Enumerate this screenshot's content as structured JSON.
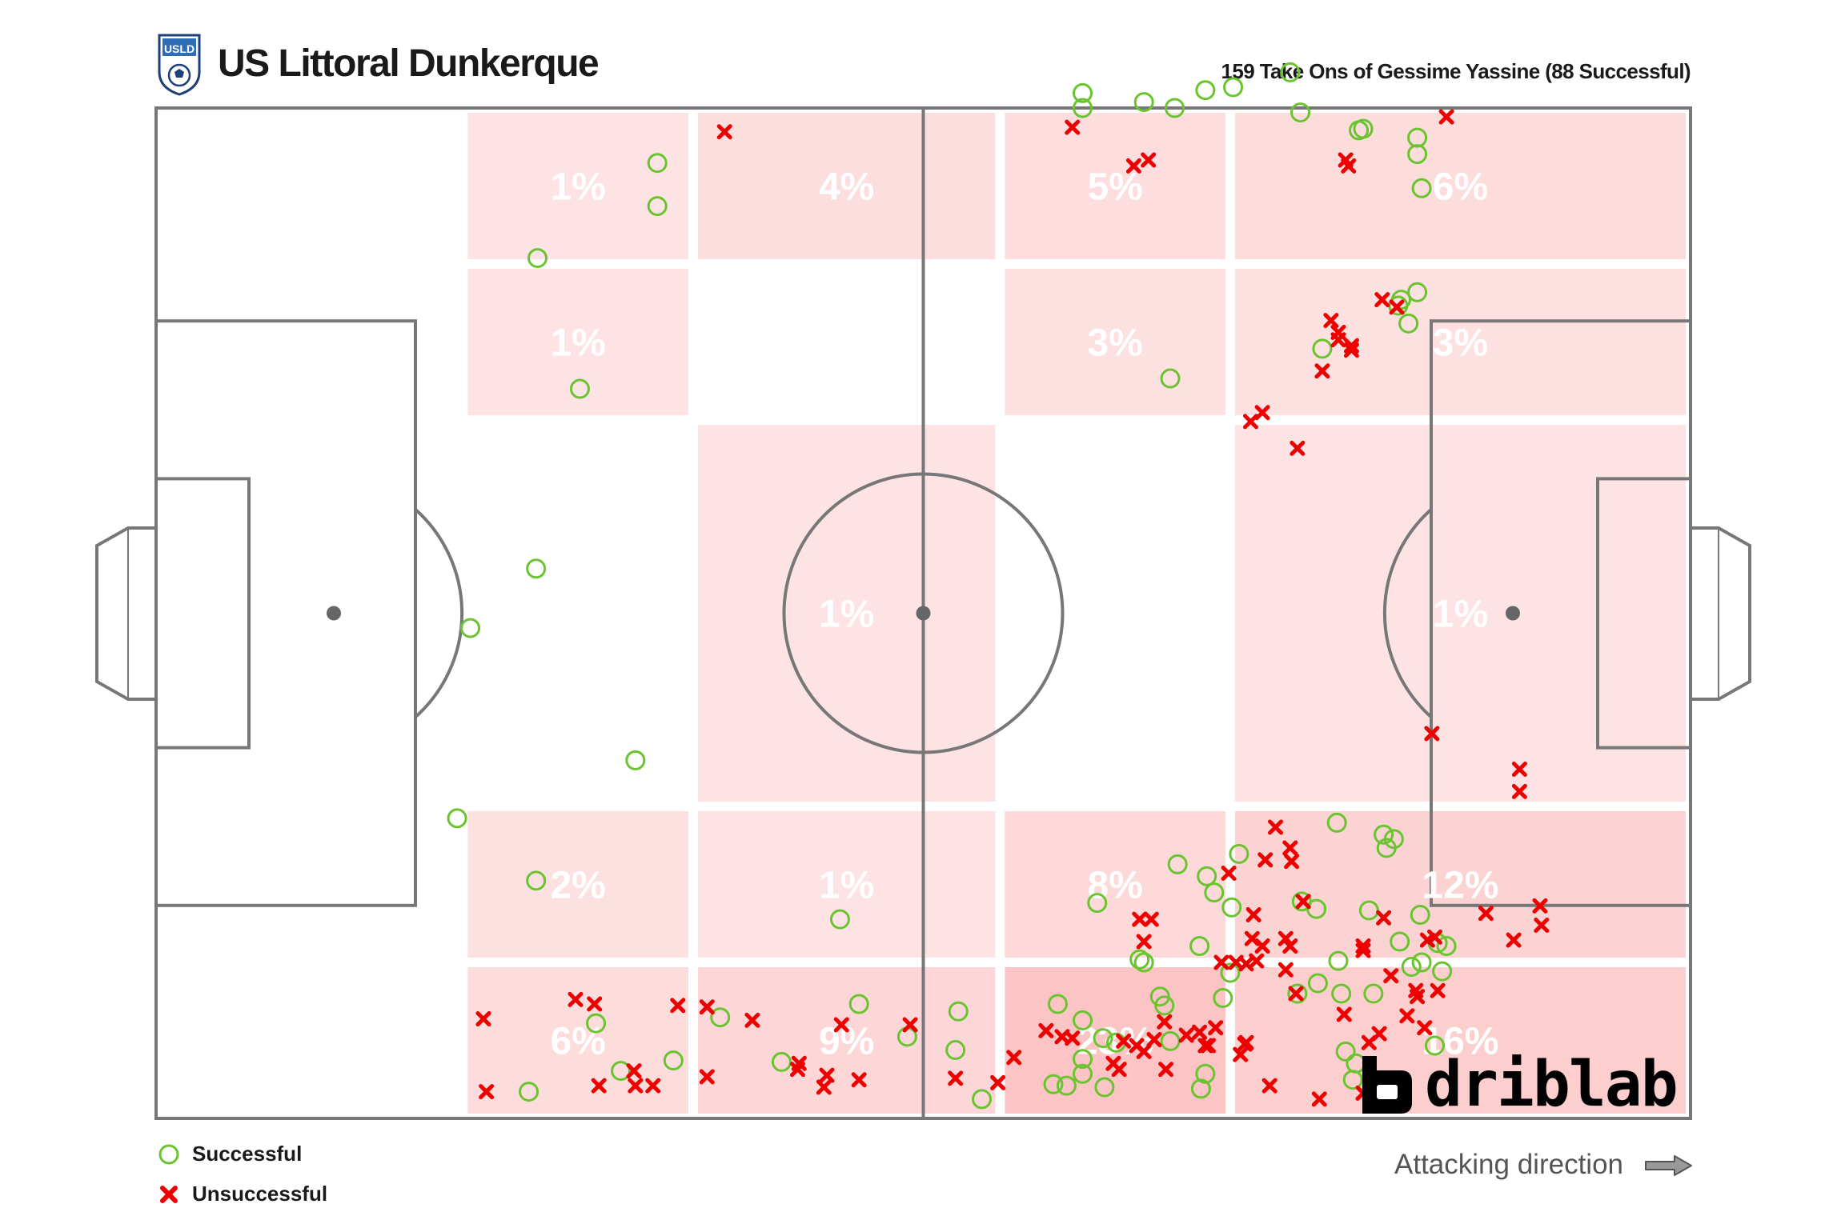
{
  "header": {
    "team_name": "US Littoral Dunkerque",
    "subtitle": "159 Take Ons of Gessime Yassine (88 Successful)",
    "crest_text": "USLD"
  },
  "legend": {
    "successful_label": "Successful",
    "unsuccessful_label": "Unsuccessful"
  },
  "attacking_direction_label": "Attacking direction",
  "brand": {
    "name": "driblab"
  },
  "colors": {
    "successful": "#6ac42f",
    "unsuccessful": "#ee0000",
    "zone_low": "#fde4e4",
    "zone_high": "#fcc4c4",
    "pitch_lines": "#777777"
  },
  "chart_data": {
    "type": "scatter",
    "pitch": {
      "length": 105,
      "width": 68,
      "direction": "left-to-right"
    },
    "zones": [
      {
        "x": [
          21,
          36.75
        ],
        "y": [
          57.5,
          68
        ],
        "pct": "1%"
      },
      {
        "x": [
          36.75,
          57.75
        ],
        "y": [
          57.5,
          68
        ],
        "pct": "4%"
      },
      {
        "x": [
          57.75,
          73.5
        ],
        "y": [
          57.5,
          68
        ],
        "pct": "5%"
      },
      {
        "x": [
          73.5,
          105
        ],
        "y": [
          57.5,
          68
        ],
        "pct": "6%"
      },
      {
        "x": [
          21,
          36.75
        ],
        "y": [
          47,
          57.5
        ],
        "pct": "1%"
      },
      {
        "x": [
          57.75,
          73.5
        ],
        "y": [
          47,
          57.5
        ],
        "pct": "3%"
      },
      {
        "x": [
          73.5,
          105
        ],
        "y": [
          47,
          57.5
        ],
        "pct": "3%"
      },
      {
        "x": [
          36.75,
          57.75
        ],
        "y": [
          21,
          47
        ],
        "pct": "1%"
      },
      {
        "x": [
          73.5,
          105
        ],
        "y": [
          21,
          47
        ],
        "pct": "1%"
      },
      {
        "x": [
          21,
          36.75
        ],
        "y": [
          10.5,
          21
        ],
        "pct": "2%"
      },
      {
        "x": [
          36.75,
          57.75
        ],
        "y": [
          10.5,
          21
        ],
        "pct": "1%"
      },
      {
        "x": [
          57.75,
          73.5
        ],
        "y": [
          10.5,
          21
        ],
        "pct": "8%"
      },
      {
        "x": [
          73.5,
          105
        ],
        "y": [
          10.5,
          21
        ],
        "pct": "12%"
      },
      {
        "x": [
          21,
          36.75
        ],
        "y": [
          0,
          10.5
        ],
        "pct": "6%"
      },
      {
        "x": [
          36.75,
          57.75
        ],
        "y": [
          0,
          10.5
        ],
        "pct": "9%"
      },
      {
        "x": [
          57.75,
          73.5
        ],
        "y": [
          0,
          10.5
        ],
        "pct": "23%"
      },
      {
        "x": [
          73.5,
          105
        ],
        "y": [
          0,
          10.5
        ],
        "pct": "16%"
      }
    ],
    "successful": [
      [
        34.3,
        64.3
      ],
      [
        34.3,
        61.4
      ],
      [
        26.1,
        57.9
      ],
      [
        29,
        49.1
      ],
      [
        26,
        37
      ],
      [
        21.5,
        33
      ],
      [
        32.8,
        24.1
      ],
      [
        20.6,
        20.2
      ],
      [
        46.8,
        13.4
      ],
      [
        38.6,
        6.8
      ],
      [
        42.8,
        3.8
      ],
      [
        51.4,
        5.5
      ],
      [
        54.9,
        7.2
      ],
      [
        48.1,
        7.7
      ],
      [
        61.7,
        7.7
      ],
      [
        63.4,
        3.0
      ],
      [
        54.7,
        4.6
      ],
      [
        35.4,
        3.9
      ],
      [
        31.8,
        3.2
      ],
      [
        30.1,
        6.4
      ],
      [
        25.5,
        1.8
      ],
      [
        26.0,
        16.0
      ],
      [
        56.5,
        1.3
      ],
      [
        63.4,
        4.0
      ],
      [
        63.4,
        69.0
      ],
      [
        63.4,
        68.0
      ],
      [
        67.6,
        68.4
      ],
      [
        71.8,
        69.2
      ],
      [
        69.7,
        68.0
      ],
      [
        73.7,
        69.4
      ],
      [
        77.6,
        70.4
      ],
      [
        82.6,
        66.6
      ],
      [
        82.3,
        66.5
      ],
      [
        78.3,
        67.7
      ],
      [
        86.3,
        66.0
      ],
      [
        86.3,
        64.9
      ],
      [
        86.6,
        62.6
      ],
      [
        86.3,
        55.6
      ],
      [
        85.2,
        55.1
      ],
      [
        85.0,
        54.7
      ],
      [
        85.7,
        53.5
      ],
      [
        79.8,
        51.8
      ],
      [
        69.4,
        49.8
      ],
      [
        80.8,
        19.9
      ],
      [
        84.0,
        19.1
      ],
      [
        84.7,
        18.8
      ],
      [
        84.2,
        18.2
      ],
      [
        74.1,
        17.8
      ],
      [
        69.9,
        17.1
      ],
      [
        71.9,
        16.3
      ],
      [
        72.4,
        15.2
      ],
      [
        73.6,
        14.2
      ],
      [
        64.4,
        14.5
      ],
      [
        78.4,
        14.6
      ],
      [
        79.4,
        14.1
      ],
      [
        83.0,
        14.0
      ],
      [
        86.5,
        13.7
      ],
      [
        88.3,
        11.6
      ],
      [
        85.9,
        10.2
      ],
      [
        83.3,
        8.4
      ],
      [
        79.5,
        9.1
      ],
      [
        73.5,
        9.8
      ],
      [
        71.4,
        11.6
      ],
      [
        67.6,
        10.5
      ],
      [
        67.3,
        10.7
      ],
      [
        68.7,
        8.2
      ],
      [
        69.0,
        7.6
      ],
      [
        69.4,
        5.2
      ],
      [
        64.8,
        5.4
      ],
      [
        65.7,
        5.1
      ],
      [
        78.1,
        8.4
      ],
      [
        81.1,
        8.4
      ],
      [
        81.4,
        4.5
      ],
      [
        82.1,
        3.7
      ],
      [
        81.9,
        2.6
      ],
      [
        88.0,
        9.9
      ],
      [
        85.1,
        11.9
      ],
      [
        73.0,
        8.1
      ],
      [
        80.9,
        10.6
      ],
      [
        87.7,
        11.8
      ],
      [
        86.6,
        10.5
      ],
      [
        87.5,
        4.9
      ],
      [
        61.4,
        2.3
      ],
      [
        62.3,
        2.2
      ],
      [
        63.4,
        6.6
      ],
      [
        71.5,
        2.0
      ],
      [
        71.8,
        3.0
      ],
      [
        64.9,
        2.1
      ]
    ],
    "unsuccessful": [
      [
        38.9,
        66.4
      ],
      [
        62.7,
        66.7
      ],
      [
        66.9,
        64.1
      ],
      [
        67.9,
        64.5
      ],
      [
        88.3,
        67.4
      ],
      [
        81.4,
        64.5
      ],
      [
        81.6,
        64.1
      ],
      [
        83.9,
        55.1
      ],
      [
        84.9,
        54.6
      ],
      [
        80.4,
        53.7
      ],
      [
        80.9,
        52.9
      ],
      [
        80.9,
        52.4
      ],
      [
        81.8,
        52.0
      ],
      [
        81.8,
        51.7
      ],
      [
        79.8,
        50.3
      ],
      [
        74.9,
        46.9
      ],
      [
        75.7,
        47.5
      ],
      [
        78.1,
        45.1
      ],
      [
        87.3,
        25.9
      ],
      [
        93.3,
        23.5
      ],
      [
        93.3,
        22.0
      ],
      [
        76.6,
        19.6
      ],
      [
        77.6,
        18.2
      ],
      [
        73.4,
        16.5
      ],
      [
        78.5,
        14.6
      ],
      [
        75.9,
        17.4
      ],
      [
        77.7,
        17.3
      ],
      [
        67.3,
        13.4
      ],
      [
        68.1,
        13.4
      ],
      [
        67.6,
        11.9
      ],
      [
        75.0,
        12.1
      ],
      [
        77.3,
        12.1
      ],
      [
        77.6,
        11.6
      ],
      [
        77.3,
        10.0
      ],
      [
        75.7,
        11.6
      ],
      [
        75.1,
        13.7
      ],
      [
        72.9,
        10.5
      ],
      [
        73.9,
        10.5
      ],
      [
        74.6,
        10.4
      ],
      [
        75.3,
        10.6
      ],
      [
        91.0,
        13.8
      ],
      [
        94.7,
        14.3
      ],
      [
        92.9,
        12.0
      ],
      [
        94.8,
        13.0
      ],
      [
        84.0,
        13.5
      ],
      [
        82.6,
        11.6
      ],
      [
        82.6,
        11.3
      ],
      [
        87.5,
        12.2
      ],
      [
        87.0,
        12.0
      ],
      [
        84.5,
        9.6
      ],
      [
        87.7,
        8.6
      ],
      [
        86.2,
        8.6
      ],
      [
        86.3,
        8.2
      ],
      [
        85.6,
        6.9
      ],
      [
        86.8,
        6.1
      ],
      [
        78.0,
        8.4
      ],
      [
        81.3,
        7.0
      ],
      [
        83.0,
        5.1
      ],
      [
        83.7,
        5.7
      ],
      [
        69.0,
        6.5
      ],
      [
        70.5,
        5.6
      ],
      [
        72.5,
        6.1
      ],
      [
        74.6,
        5.1
      ],
      [
        74.5,
        5.0
      ],
      [
        72.0,
        4.9
      ],
      [
        71.4,
        5.8
      ],
      [
        71.8,
        4.9
      ],
      [
        74.2,
        4.3
      ],
      [
        69.1,
        3.3
      ],
      [
        68.3,
        5.3
      ],
      [
        67.6,
        4.5
      ],
      [
        67.1,
        4.9
      ],
      [
        66.2,
        5.2
      ],
      [
        65.5,
        3.7
      ],
      [
        65.9,
        3.3
      ],
      [
        60.9,
        5.9
      ],
      [
        62.0,
        5.5
      ],
      [
        62.7,
        5.4
      ],
      [
        58.7,
        4.1
      ],
      [
        76.2,
        2.2
      ],
      [
        79.6,
        1.3
      ],
      [
        51.6,
        6.3
      ],
      [
        46.9,
        6.3
      ],
      [
        40.8,
        6.6
      ],
      [
        22.4,
        6.7
      ],
      [
        28.7,
        8.0
      ],
      [
        30.0,
        7.7
      ],
      [
        35.7,
        7.6
      ],
      [
        37.7,
        7.5
      ],
      [
        43.9,
        3.3
      ],
      [
        44.0,
        3.7
      ],
      [
        45.9,
        2.9
      ],
      [
        48.1,
        2.6
      ],
      [
        37.7,
        2.8
      ],
      [
        45.7,
        2.1
      ],
      [
        34.0,
        2.2
      ],
      [
        32.7,
        3.2
      ],
      [
        32.8,
        2.2
      ],
      [
        22.6,
        1.8
      ],
      [
        30.3,
        2.2
      ],
      [
        54.7,
        2.7
      ],
      [
        57.6,
        2.4
      ],
      [
        82.6,
        1.7
      ],
      [
        83.8,
        2.4
      ]
    ]
  }
}
